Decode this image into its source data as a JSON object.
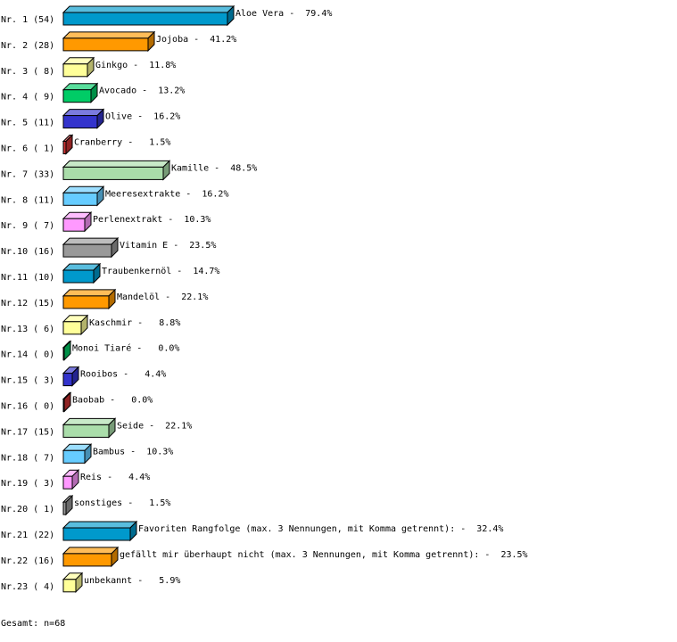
{
  "chart_data": {
    "type": "bar",
    "orientation": "horizontal",
    "style": "3d",
    "categories": [
      "Aloe Vera",
      "Jojoba",
      "Ginkgo",
      "Avocado",
      "Olive",
      "Cranberry",
      "Kamille",
      "Meeresextrakte",
      "Perlenextrakt",
      "Vitamin E",
      "Traubenkernöl",
      "Mandelöl",
      "Kaschmir",
      "Monoi Tiaré",
      "Rooibos",
      "Baobab",
      "Seide",
      "Bambus",
      "Reis",
      "sonstiges",
      "Favoriten Rangfolge (max. 3 Nennungen, mit Komma getrennt):",
      "gefällt mir überhaupt nicht (max. 3 Nennungen, mit Komma getrennt):",
      "unbekannt"
    ],
    "row_labels": [
      "Nr. 1 (54)",
      "Nr. 2 (28)",
      "Nr. 3 ( 8)",
      "Nr. 4 ( 9)",
      "Nr. 5 (11)",
      "Nr. 6 ( 1)",
      "Nr. 7 (33)",
      "Nr. 8 (11)",
      "Nr. 9 ( 7)",
      "Nr.10 (16)",
      "Nr.11 (10)",
      "Nr.12 (15)",
      "Nr.13 ( 6)",
      "Nr.14 ( 0)",
      "Nr.15 ( 3)",
      "Nr.16 ( 0)",
      "Nr.17 (15)",
      "Nr.18 ( 7)",
      "Nr.19 ( 3)",
      "Nr.20 ( 1)",
      "Nr.21 (22)",
      "Nr.22 (16)",
      "Nr.23 ( 4)"
    ],
    "counts": [
      54,
      28,
      8,
      9,
      11,
      1,
      33,
      11,
      7,
      16,
      10,
      15,
      6,
      0,
      3,
      0,
      15,
      7,
      3,
      1,
      22,
      16,
      4
    ],
    "values": [
      79.4,
      41.2,
      11.8,
      13.2,
      16.2,
      1.5,
      48.5,
      16.2,
      10.3,
      23.5,
      14.7,
      22.1,
      8.8,
      0.0,
      4.4,
      0.0,
      22.1,
      10.3,
      4.4,
      1.5,
      32.4,
      23.5,
      5.9
    ],
    "value_labels": [
      "79.4%",
      "41.2%",
      "11.8%",
      "13.2%",
      "16.2%",
      "1.5%",
      "48.5%",
      "16.2%",
      "10.3%",
      "23.5%",
      "14.7%",
      "22.1%",
      "8.8%",
      "0.0%",
      "4.4%",
      "0.0%",
      "22.1%",
      "10.3%",
      "4.4%",
      "1.5%",
      "32.4%",
      "23.5%",
      "5.9%"
    ],
    "colors": [
      "#0099cc",
      "#ff9900",
      "#ffff99",
      "#00cc66",
      "#3333cc",
      "#cc3333",
      "#aaddaa",
      "#66ccff",
      "#ff99ff",
      "#999999"
    ],
    "footer": "Gesamt: n=68"
  }
}
